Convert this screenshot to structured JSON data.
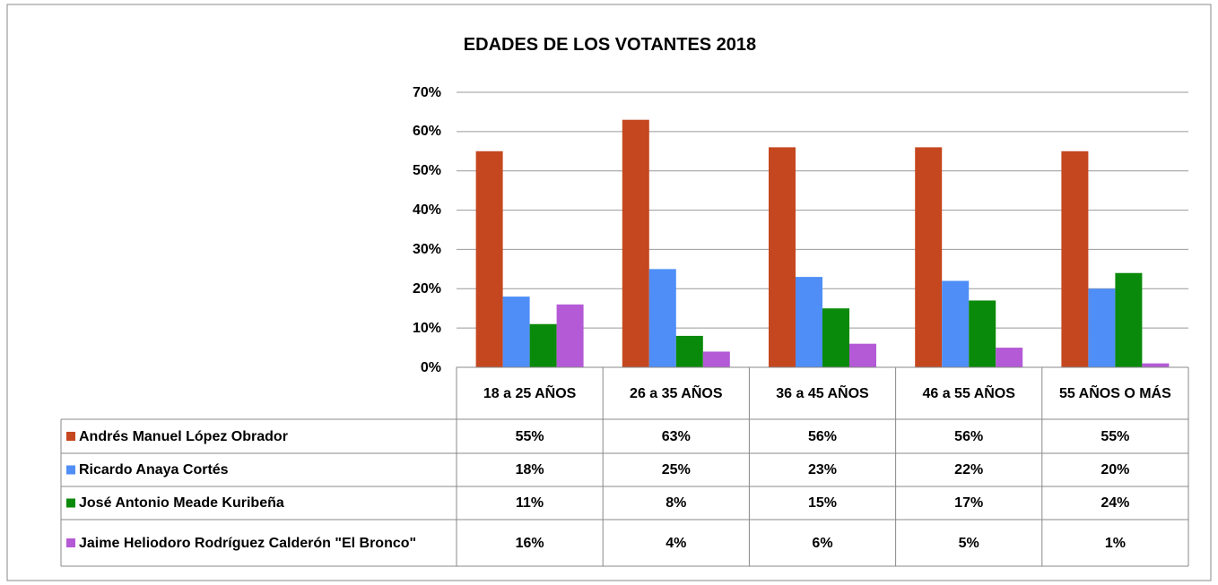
{
  "chart_data": {
    "type": "bar",
    "title": "EDADES DE LOS VOTANTES 2018",
    "categories": [
      "18 a 25 AÑOS",
      "26 a 35 AÑOS",
      "36 a 45 AÑOS",
      "46 a 55 AÑOS",
      "55 AÑOS O MÁS"
    ],
    "series": [
      {
        "name": "Andrés Manuel López Obrador",
        "color": "#c5471f",
        "values": [
          55,
          63,
          56,
          56,
          55
        ],
        "value_labels": [
          "55%",
          "63%",
          "56%",
          "56%",
          "55%"
        ]
      },
      {
        "name": "Ricardo Anaya Cortés",
        "color": "#4f8ef7",
        "values": [
          18,
          25,
          23,
          22,
          20
        ],
        "value_labels": [
          "18%",
          "25%",
          "23%",
          "22%",
          "20%"
        ]
      },
      {
        "name": "José Antonio Meade Kuribeña",
        "color": "#0a8a0a",
        "values": [
          11,
          8,
          15,
          17,
          24
        ],
        "value_labels": [
          "11%",
          "8%",
          "15%",
          "17%",
          "24%"
        ]
      },
      {
        "name": "Jaime Heliodoro Rodríguez Calderón \"El Bronco\"",
        "color": "#b45ad6",
        "values": [
          16,
          4,
          6,
          5,
          1
        ],
        "value_labels": [
          "16%",
          "4%",
          "6%",
          "5%",
          "1%"
        ]
      }
    ],
    "ylim": [
      0,
      70
    ],
    "yticks": [
      {
        "value": 0,
        "label": "0%"
      },
      {
        "value": 10,
        "label": "10%"
      },
      {
        "value": 20,
        "label": "20%"
      },
      {
        "value": 30,
        "label": "30%"
      },
      {
        "value": 40,
        "label": "40%"
      },
      {
        "value": 50,
        "label": "50%"
      },
      {
        "value": 60,
        "label": "60%"
      },
      {
        "value": 70,
        "label": "70%"
      }
    ],
    "grid": true
  }
}
